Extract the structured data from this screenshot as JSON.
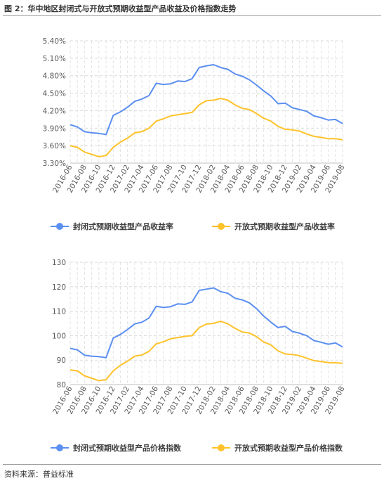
{
  "figure": {
    "title": "图 2：华中地区封闭式与开放式预期收益型产品收益及价格指数走势",
    "source": "资料来源：普益标准"
  },
  "colors": {
    "blue": "#5B8FF0",
    "orange": "#FFC22B"
  },
  "chart_data": [
    {
      "type": "line",
      "x": [
        "2016-06",
        "2016-07",
        "2016-08",
        "2016-09",
        "2016-10",
        "2016-11",
        "2016-12",
        "2017-01",
        "2017-02",
        "2017-03",
        "2017-04",
        "2017-05",
        "2017-06",
        "2017-07",
        "2017-08",
        "2017-09",
        "2017-10",
        "2017-11",
        "2017-12",
        "2018-01",
        "2018-02",
        "2018-03",
        "2018-04",
        "2018-05",
        "2018-06",
        "2018-07",
        "2018-08",
        "2018-09",
        "2018-10",
        "2018-11",
        "2018-12",
        "2019-01",
        "2019-02",
        "2019-03",
        "2019-04",
        "2019-05",
        "2019-06",
        "2019-07",
        "2019-08"
      ],
      "x_tick_labels": [
        "2016-06",
        "2016-08",
        "2016-10",
        "2016-12",
        "2017-02",
        "2017-04",
        "2017-06",
        "2017-08",
        "2017-10",
        "2017-12",
        "2018-02",
        "2018-04",
        "2018-06",
        "2018-08",
        "2018-10",
        "2018-12",
        "2019-02",
        "2019-04",
        "2019-06",
        "2019-08"
      ],
      "ylim": [
        3.3,
        5.4
      ],
      "y_ticks": [
        "3.30%",
        "3.60%",
        "3.90%",
        "4.20%",
        "4.50%",
        "4.80%",
        "5.10%",
        "5.40%"
      ],
      "grid": true,
      "legend": "bottom",
      "series": [
        {
          "name": "封闭式预期收益型产品收益率",
          "color": "#5B8FF0",
          "values": [
            3.96,
            3.92,
            3.84,
            3.82,
            3.81,
            3.79,
            4.12,
            4.18,
            4.26,
            4.36,
            4.4,
            4.46,
            4.67,
            4.65,
            4.66,
            4.71,
            4.7,
            4.75,
            4.94,
            4.97,
            4.99,
            4.94,
            4.91,
            4.83,
            4.79,
            4.73,
            4.64,
            4.54,
            4.45,
            4.32,
            4.33,
            4.25,
            4.22,
            4.19,
            4.11,
            4.08,
            4.04,
            4.05,
            3.98
          ]
        },
        {
          "name": "开放式预期收益型产品收益率",
          "color": "#FFC22B",
          "values": [
            3.6,
            3.57,
            3.49,
            3.45,
            3.41,
            3.43,
            3.57,
            3.66,
            3.73,
            3.82,
            3.84,
            3.9,
            4.02,
            4.06,
            4.11,
            4.13,
            4.15,
            4.17,
            4.3,
            4.37,
            4.38,
            4.41,
            4.38,
            4.3,
            4.24,
            4.22,
            4.15,
            4.07,
            4.02,
            3.93,
            3.88,
            3.87,
            3.85,
            3.8,
            3.76,
            3.74,
            3.72,
            3.72,
            3.7
          ]
        }
      ]
    },
    {
      "type": "line",
      "x": [
        "2016-06",
        "2016-07",
        "2016-08",
        "2016-09",
        "2016-10",
        "2016-11",
        "2016-12",
        "2017-01",
        "2017-02",
        "2017-03",
        "2017-04",
        "2017-05",
        "2017-06",
        "2017-07",
        "2017-08",
        "2017-09",
        "2017-10",
        "2017-11",
        "2017-12",
        "2018-01",
        "2018-02",
        "2018-03",
        "2018-04",
        "2018-05",
        "2018-06",
        "2018-07",
        "2018-08",
        "2018-09",
        "2018-10",
        "2018-11",
        "2018-12",
        "2019-01",
        "2019-02",
        "2019-03",
        "2019-04",
        "2019-05",
        "2019-06",
        "2019-07",
        "2019-08"
      ],
      "x_tick_labels": [
        "2016-06",
        "2016-08",
        "2016-10",
        "2016-12",
        "2017-02",
        "2017-04",
        "2017-06",
        "2017-08",
        "2017-10",
        "2017-12",
        "2018-02",
        "2018-04",
        "2018-06",
        "2018-08",
        "2018-10",
        "2018-12",
        "2019-02",
        "2019-04",
        "2019-06",
        "2019-08"
      ],
      "ylim": [
        80,
        130
      ],
      "y_ticks": [
        "80",
        "90",
        "100",
        "110",
        "120",
        "130"
      ],
      "grid": true,
      "legend": "bottom",
      "series": [
        {
          "name": "封闭式预期收益型产品价格指数",
          "color": "#5B8FF0",
          "values": [
            94.8,
            94.2,
            92.0,
            91.6,
            91.4,
            91.0,
            99.0,
            100.5,
            102.5,
            104.8,
            105.5,
            107.2,
            112.0,
            111.5,
            111.8,
            113.0,
            112.8,
            113.8,
            118.5,
            119.0,
            119.5,
            118.0,
            117.3,
            115.3,
            114.6,
            113.4,
            111.0,
            108.0,
            105.5,
            103.3,
            103.8,
            101.7,
            101.0,
            100.0,
            98.0,
            97.3,
            96.5,
            97.0,
            95.4
          ]
        },
        {
          "name": "开放式预期收益型产品价格指数",
          "color": "#FFC22B",
          "values": [
            86.0,
            85.6,
            83.6,
            82.6,
            81.6,
            82.0,
            85.6,
            87.9,
            89.6,
            91.6,
            92.1,
            93.6,
            96.6,
            97.5,
            98.7,
            99.2,
            99.7,
            100.0,
            103.3,
            104.7,
            105.0,
            105.9,
            104.8,
            103.0,
            101.5,
            101.1,
            99.6,
            97.4,
            96.2,
            93.8,
            92.5,
            92.3,
            91.8,
            90.8,
            89.8,
            89.4,
            89.0,
            88.9,
            88.7
          ]
        }
      ]
    }
  ]
}
